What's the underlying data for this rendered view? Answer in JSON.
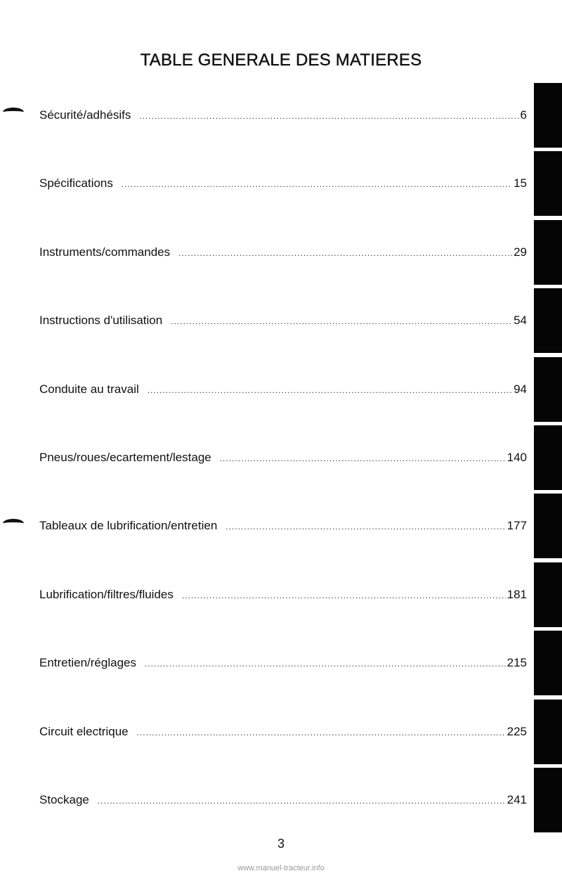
{
  "title": "TABLE GENERALE DES MATIERES",
  "entries": [
    {
      "label": "Sécurité/adhésifs",
      "page": "6"
    },
    {
      "label": "Spécifications",
      "page": "15"
    },
    {
      "label": "Instruments/commandes",
      "page": "29"
    },
    {
      "label": "Instructions d'utilisation",
      "page": "54"
    },
    {
      "label": "Conduite au travail",
      "page": "94"
    },
    {
      "label": "Pneus/roues/ecartement/lestage",
      "page": "140"
    },
    {
      "label": "Tableaux de lubrification/entretien",
      "page": "177"
    },
    {
      "label": "Lubrification/filtres/fluides",
      "page": "181"
    },
    {
      "label": "Entretien/réglages",
      "page": "215"
    },
    {
      "label": "Circuit electrique",
      "page": "225"
    },
    {
      "label": "Stockage",
      "page": "241"
    }
  ],
  "page_number": "3",
  "footer": "www.manuel-tracteur.info",
  "colors": {
    "text": "#111111",
    "tab": "#050505",
    "footer": "#999999"
  }
}
